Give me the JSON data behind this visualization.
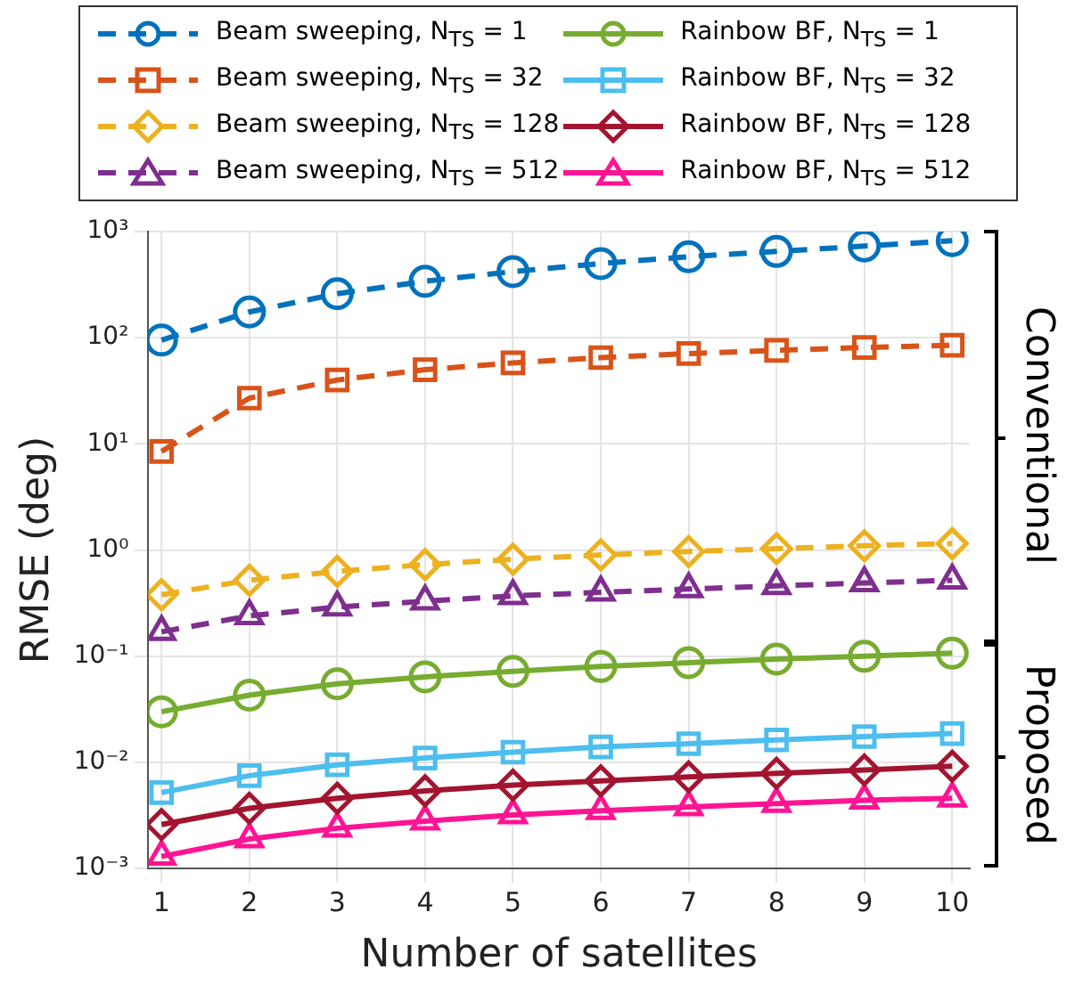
{
  "chart_data": {
    "type": "line",
    "xlabel": "Number of satellites",
    "ylabel": "RMSE (deg)",
    "x": [
      1,
      2,
      3,
      4,
      5,
      6,
      7,
      8,
      9,
      10
    ],
    "series": [
      {
        "name": "Beam sweeping, N$_{TS}$ = 1",
        "color": "#0072bd",
        "marker": "circle",
        "line_style": "dashed",
        "values": [
          95,
          175,
          260,
          340,
          420,
          500,
          580,
          650,
          730,
          820
        ]
      },
      {
        "name": "Beam sweeping, N$_{TS}$ = 32",
        "color": "#d95319",
        "marker": "square",
        "line_style": "dashed",
        "values": [
          8.5,
          27,
          40,
          50,
          58,
          65,
          71,
          76,
          81,
          85
        ]
      },
      {
        "name": "Beam sweeping, N$_{TS}$ = 128",
        "color": "#edb120",
        "marker": "diamond",
        "line_style": "dashed",
        "values": [
          0.38,
          0.52,
          0.63,
          0.73,
          0.82,
          0.9,
          0.97,
          1.03,
          1.1,
          1.15
        ]
      },
      {
        "name": "Beam sweeping, N$_{TS}$ = 512",
        "color": "#7e2f8e",
        "marker": "triangle",
        "line_style": "dashed",
        "values": [
          0.17,
          0.24,
          0.29,
          0.33,
          0.37,
          0.4,
          0.43,
          0.46,
          0.49,
          0.52
        ]
      },
      {
        "name": "Rainbow BF, N$_{TS}$ = 1",
        "color": "#77ac30",
        "marker": "circle",
        "line_style": "solid",
        "values": [
          0.03,
          0.043,
          0.055,
          0.064,
          0.072,
          0.08,
          0.087,
          0.094,
          0.1,
          0.107
        ]
      },
      {
        "name": "Rainbow BF, N$_{TS}$ = 32",
        "color": "#4dbeee",
        "marker": "square",
        "line_style": "solid",
        "values": [
          0.0052,
          0.0075,
          0.0095,
          0.011,
          0.0125,
          0.014,
          0.015,
          0.0163,
          0.0175,
          0.0187
        ]
      },
      {
        "name": "Rainbow BF, N$_{TS}$ = 128",
        "color": "#a2142f",
        "marker": "diamond",
        "line_style": "solid",
        "values": [
          0.0026,
          0.0037,
          0.0046,
          0.0054,
          0.0061,
          0.0067,
          0.0073,
          0.0079,
          0.0085,
          0.0092
        ]
      },
      {
        "name": "Rainbow BF, N$_{TS}$ = 512",
        "color": "#ff1493",
        "marker": "triangle",
        "line_style": "solid",
        "values": [
          0.0013,
          0.0019,
          0.0024,
          0.0028,
          0.0032,
          0.0035,
          0.0038,
          0.0041,
          0.0044,
          0.0046
        ]
      }
    ],
    "log": "y",
    "xlim": [
      0.85,
      10.2
    ],
    "xticks": [
      1,
      2,
      3,
      4,
      5,
      6,
      7,
      8,
      9,
      10
    ],
    "ylim": [
      0.001,
      1000
    ],
    "yticks": [
      {
        "value": 1000,
        "label": "10³"
      },
      {
        "value": 100,
        "label": "10²"
      },
      {
        "value": 10,
        "label": "10¹"
      },
      {
        "value": 1,
        "label": "10⁰"
      },
      {
        "value": 0.1,
        "label": "10⁻¹"
      },
      {
        "value": 0.01,
        "label": "10⁻²"
      },
      {
        "value": 0.001,
        "label": "10⁻³"
      }
    ],
    "grid": true,
    "legend": "top",
    "annotations": [
      "Conventional",
      "Proposed"
    ]
  }
}
